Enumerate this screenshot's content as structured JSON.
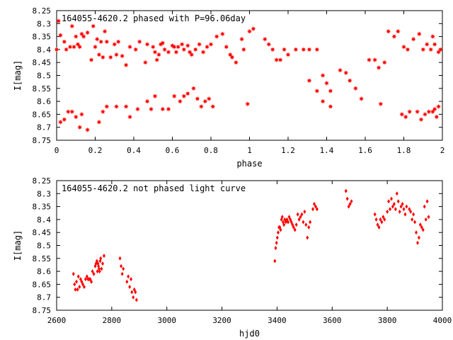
{
  "chart_data": [
    {
      "type": "scatter",
      "title": "164055-4620.2 phased with P=96.06day",
      "xlabel": "phase",
      "ylabel": "I[mag]",
      "xlim": [
        0,
        2
      ],
      "ylim": [
        8.25,
        8.75
      ],
      "y_inverted": true,
      "xticks": [
        "0",
        "0.2",
        "0.4",
        "0.6",
        "0.8",
        "1",
        "1.2",
        "1.4",
        "1.6",
        "1.8",
        "2"
      ],
      "yticks": [
        "8.25",
        "8.3",
        "8.35",
        "8.4",
        "8.45",
        "8.5",
        "8.55",
        "8.6",
        "8.65",
        "8.7",
        "8.75"
      ],
      "marker": "star",
      "color": "#ff0000",
      "grid": false,
      "series": [
        {
          "x": [
            0.0,
            0.01,
            0.02,
            0.04,
            0.05,
            0.07,
            0.08,
            0.09,
            0.1,
            0.11,
            0.12,
            0.13,
            0.14,
            0.16,
            0.18,
            0.19,
            0.2,
            0.21,
            0.22,
            0.23,
            0.24,
            0.25,
            0.26,
            0.28,
            0.3,
            0.31,
            0.32,
            0.34,
            0.36,
            0.38,
            0.41,
            0.43,
            0.46,
            0.47,
            0.5,
            0.51,
            0.52,
            0.53,
            0.54,
            0.55,
            0.56,
            0.58,
            0.6,
            0.61,
            0.62,
            0.63,
            0.65,
            0.66,
            0.68,
            0.69,
            0.7,
            0.72,
            0.74,
            0.76,
            0.78,
            0.8,
            0.83,
            0.86,
            0.88,
            0.9,
            0.91,
            0.93,
            0.96,
            0.97,
            1.0,
            1.02,
            0.02,
            0.04,
            0.06,
            0.08,
            0.1,
            0.12,
            0.13,
            0.16,
            0.22,
            0.24,
            0.26,
            0.31,
            0.36,
            0.38,
            0.42,
            0.47,
            0.49,
            0.51,
            0.55,
            0.58,
            0.61,
            0.64,
            0.66,
            0.68,
            0.71,
            0.73,
            0.75,
            0.77,
            0.79,
            0.81,
            0.99,
            1.08,
            1.1,
            1.12,
            1.14,
            1.16,
            1.18,
            1.2,
            1.24,
            1.28,
            1.31,
            1.35,
            1.38,
            1.4,
            1.42,
            1.31,
            1.35,
            1.38,
            1.42,
            1.47,
            1.5,
            1.52,
            1.55,
            1.58,
            1.62,
            1.65,
            1.67,
            1.7,
            1.72,
            1.75,
            1.77,
            1.8,
            1.82,
            1.85,
            1.88,
            1.9,
            1.92,
            1.94,
            1.95,
            1.96,
            1.98,
            1.99,
            1.68,
            1.79,
            1.81,
            1.83,
            1.87,
            1.89,
            1.91,
            1.93,
            1.95,
            1.96,
            1.97,
            1.98
          ]
        },
        {
          "y": [
            8.4,
            8.29,
            8.345,
            8.37,
            8.4,
            8.39,
            8.31,
            8.39,
            8.35,
            8.38,
            8.39,
            8.34,
            8.35,
            8.335,
            8.44,
            8.31,
            8.39,
            8.36,
            8.42,
            8.37,
            8.43,
            8.33,
            8.37,
            8.43,
            8.38,
            8.42,
            8.37,
            8.425,
            8.46,
            8.39,
            8.4,
            8.37,
            8.45,
            8.38,
            8.39,
            8.41,
            8.44,
            8.42,
            8.38,
            8.375,
            8.4,
            8.41,
            8.385,
            8.39,
            8.41,
            8.39,
            8.38,
            8.4,
            8.385,
            8.41,
            8.42,
            8.4,
            8.38,
            8.41,
            8.39,
            8.38,
            8.35,
            8.34,
            8.39,
            8.42,
            8.43,
            8.45,
            8.36,
            8.4,
            8.33,
            8.32,
            8.68,
            8.67,
            8.64,
            8.64,
            8.66,
            8.7,
            8.65,
            8.71,
            8.68,
            8.64,
            8.62,
            8.62,
            8.62,
            8.66,
            8.63,
            8.6,
            8.63,
            8.58,
            8.63,
            8.63,
            8.58,
            8.6,
            8.58,
            8.57,
            8.55,
            8.59,
            8.62,
            8.6,
            8.59,
            8.62,
            8.61,
            8.36,
            8.38,
            8.4,
            8.44,
            8.44,
            8.4,
            8.42,
            8.4,
            8.4,
            8.4,
            8.4,
            8.5,
            8.53,
            8.62,
            8.52,
            8.56,
            8.6,
            8.56,
            8.48,
            8.49,
            8.52,
            8.55,
            8.59,
            8.44,
            8.44,
            8.47,
            8.45,
            8.33,
            8.35,
            8.33,
            8.39,
            8.4,
            8.36,
            8.34,
            8.4,
            8.38,
            8.4,
            8.35,
            8.38,
            8.41,
            8.4,
            8.61,
            8.65,
            8.66,
            8.64,
            8.64,
            8.67,
            8.65,
            8.64,
            8.64,
            8.63,
            8.66,
            8.62
          ]
        }
      ]
    },
    {
      "type": "scatter",
      "title": "164055-4620.2 not phased light curve",
      "xlabel": "hjd0",
      "ylabel": "I[mag]",
      "xlim": [
        2600,
        4000
      ],
      "ylim": [
        8.25,
        8.75
      ],
      "y_inverted": true,
      "xticks": [
        "2600",
        "2800",
        "3000",
        "3200",
        "3400",
        "3600",
        "3800",
        "4000"
      ],
      "yticks": [
        "8.25",
        "8.3",
        "8.35",
        "8.4",
        "8.45",
        "8.5",
        "8.55",
        "8.6",
        "8.65",
        "8.7",
        "8.75"
      ],
      "marker": "diamond",
      "color": "#ff0000",
      "grid": false,
      "series": [
        {
          "x": [
            2661,
            2665,
            2668,
            2672,
            2676,
            2679,
            2683,
            2687,
            2691,
            2695,
            2700,
            2705,
            2710,
            2714,
            2718,
            2722,
            2726,
            2730,
            2735,
            2740,
            2743,
            2746,
            2748,
            2750,
            2752,
            2754,
            2756,
            2758,
            2760,
            2763,
            2767,
            2772,
            2830,
            2834,
            2838,
            2842,
            2855,
            2860,
            2865,
            2870,
            2873,
            2878,
            2882,
            2886,
            2890,
            3392,
            3395,
            3398,
            3401,
            3404,
            3407,
            3410,
            3413,
            3416,
            3419,
            3422,
            3425,
            3428,
            3432,
            3436,
            3440,
            3444,
            3448,
            3452,
            3456,
            3460,
            3465,
            3470,
            3475,
            3480,
            3485,
            3490,
            3495,
            3500,
            3505,
            3510,
            3515,
            3520,
            3530,
            3535,
            3540,
            3545,
            3650,
            3655,
            3660,
            3665,
            3670,
            3755,
            3760,
            3765,
            3770,
            3775,
            3780,
            3785,
            3790,
            3800,
            3805,
            3810,
            3815,
            3820,
            3825,
            3830,
            3835,
            3840,
            3845,
            3850,
            3855,
            3860,
            3865,
            3870,
            3880,
            3885,
            3890,
            3895,
            3900,
            3905,
            3910,
            3915,
            3920,
            3925,
            3930,
            3935,
            3940,
            3945,
            3950
          ]
        },
        {
          "y": [
            8.61,
            8.65,
            8.67,
            8.64,
            8.67,
            8.62,
            8.66,
            8.63,
            8.64,
            8.65,
            8.66,
            8.63,
            8.62,
            8.63,
            8.63,
            8.63,
            8.64,
            8.6,
            8.61,
            8.58,
            8.57,
            8.56,
            8.6,
            8.57,
            8.58,
            8.59,
            8.6,
            8.56,
            8.55,
            8.59,
            8.57,
            8.54,
            8.55,
            8.58,
            8.61,
            8.59,
            8.64,
            8.62,
            8.66,
            8.63,
            8.68,
            8.7,
            8.67,
            8.68,
            8.71,
            8.56,
            8.51,
            8.49,
            8.47,
            8.45,
            8.43,
            8.43,
            8.44,
            8.4,
            8.39,
            8.41,
            8.42,
            8.4,
            8.41,
            8.4,
            8.41,
            8.39,
            8.4,
            8.41,
            8.42,
            8.43,
            8.44,
            8.42,
            8.38,
            8.4,
            8.39,
            8.38,
            8.41,
            8.37,
            8.42,
            8.47,
            8.43,
            8.41,
            8.36,
            8.34,
            8.35,
            8.36,
            8.29,
            8.32,
            8.35,
            8.34,
            8.33,
            8.38,
            8.4,
            8.42,
            8.43,
            8.4,
            8.41,
            8.39,
            8.4,
            8.37,
            8.33,
            8.36,
            8.32,
            8.35,
            8.34,
            8.36,
            8.3,
            8.33,
            8.37,
            8.35,
            8.34,
            8.36,
            8.38,
            8.35,
            8.36,
            8.37,
            8.4,
            8.38,
            8.41,
            8.45,
            8.49,
            8.47,
            8.42,
            8.43,
            8.44,
            8.35,
            8.4,
            8.33,
            8.39
          ]
        }
      ]
    }
  ]
}
